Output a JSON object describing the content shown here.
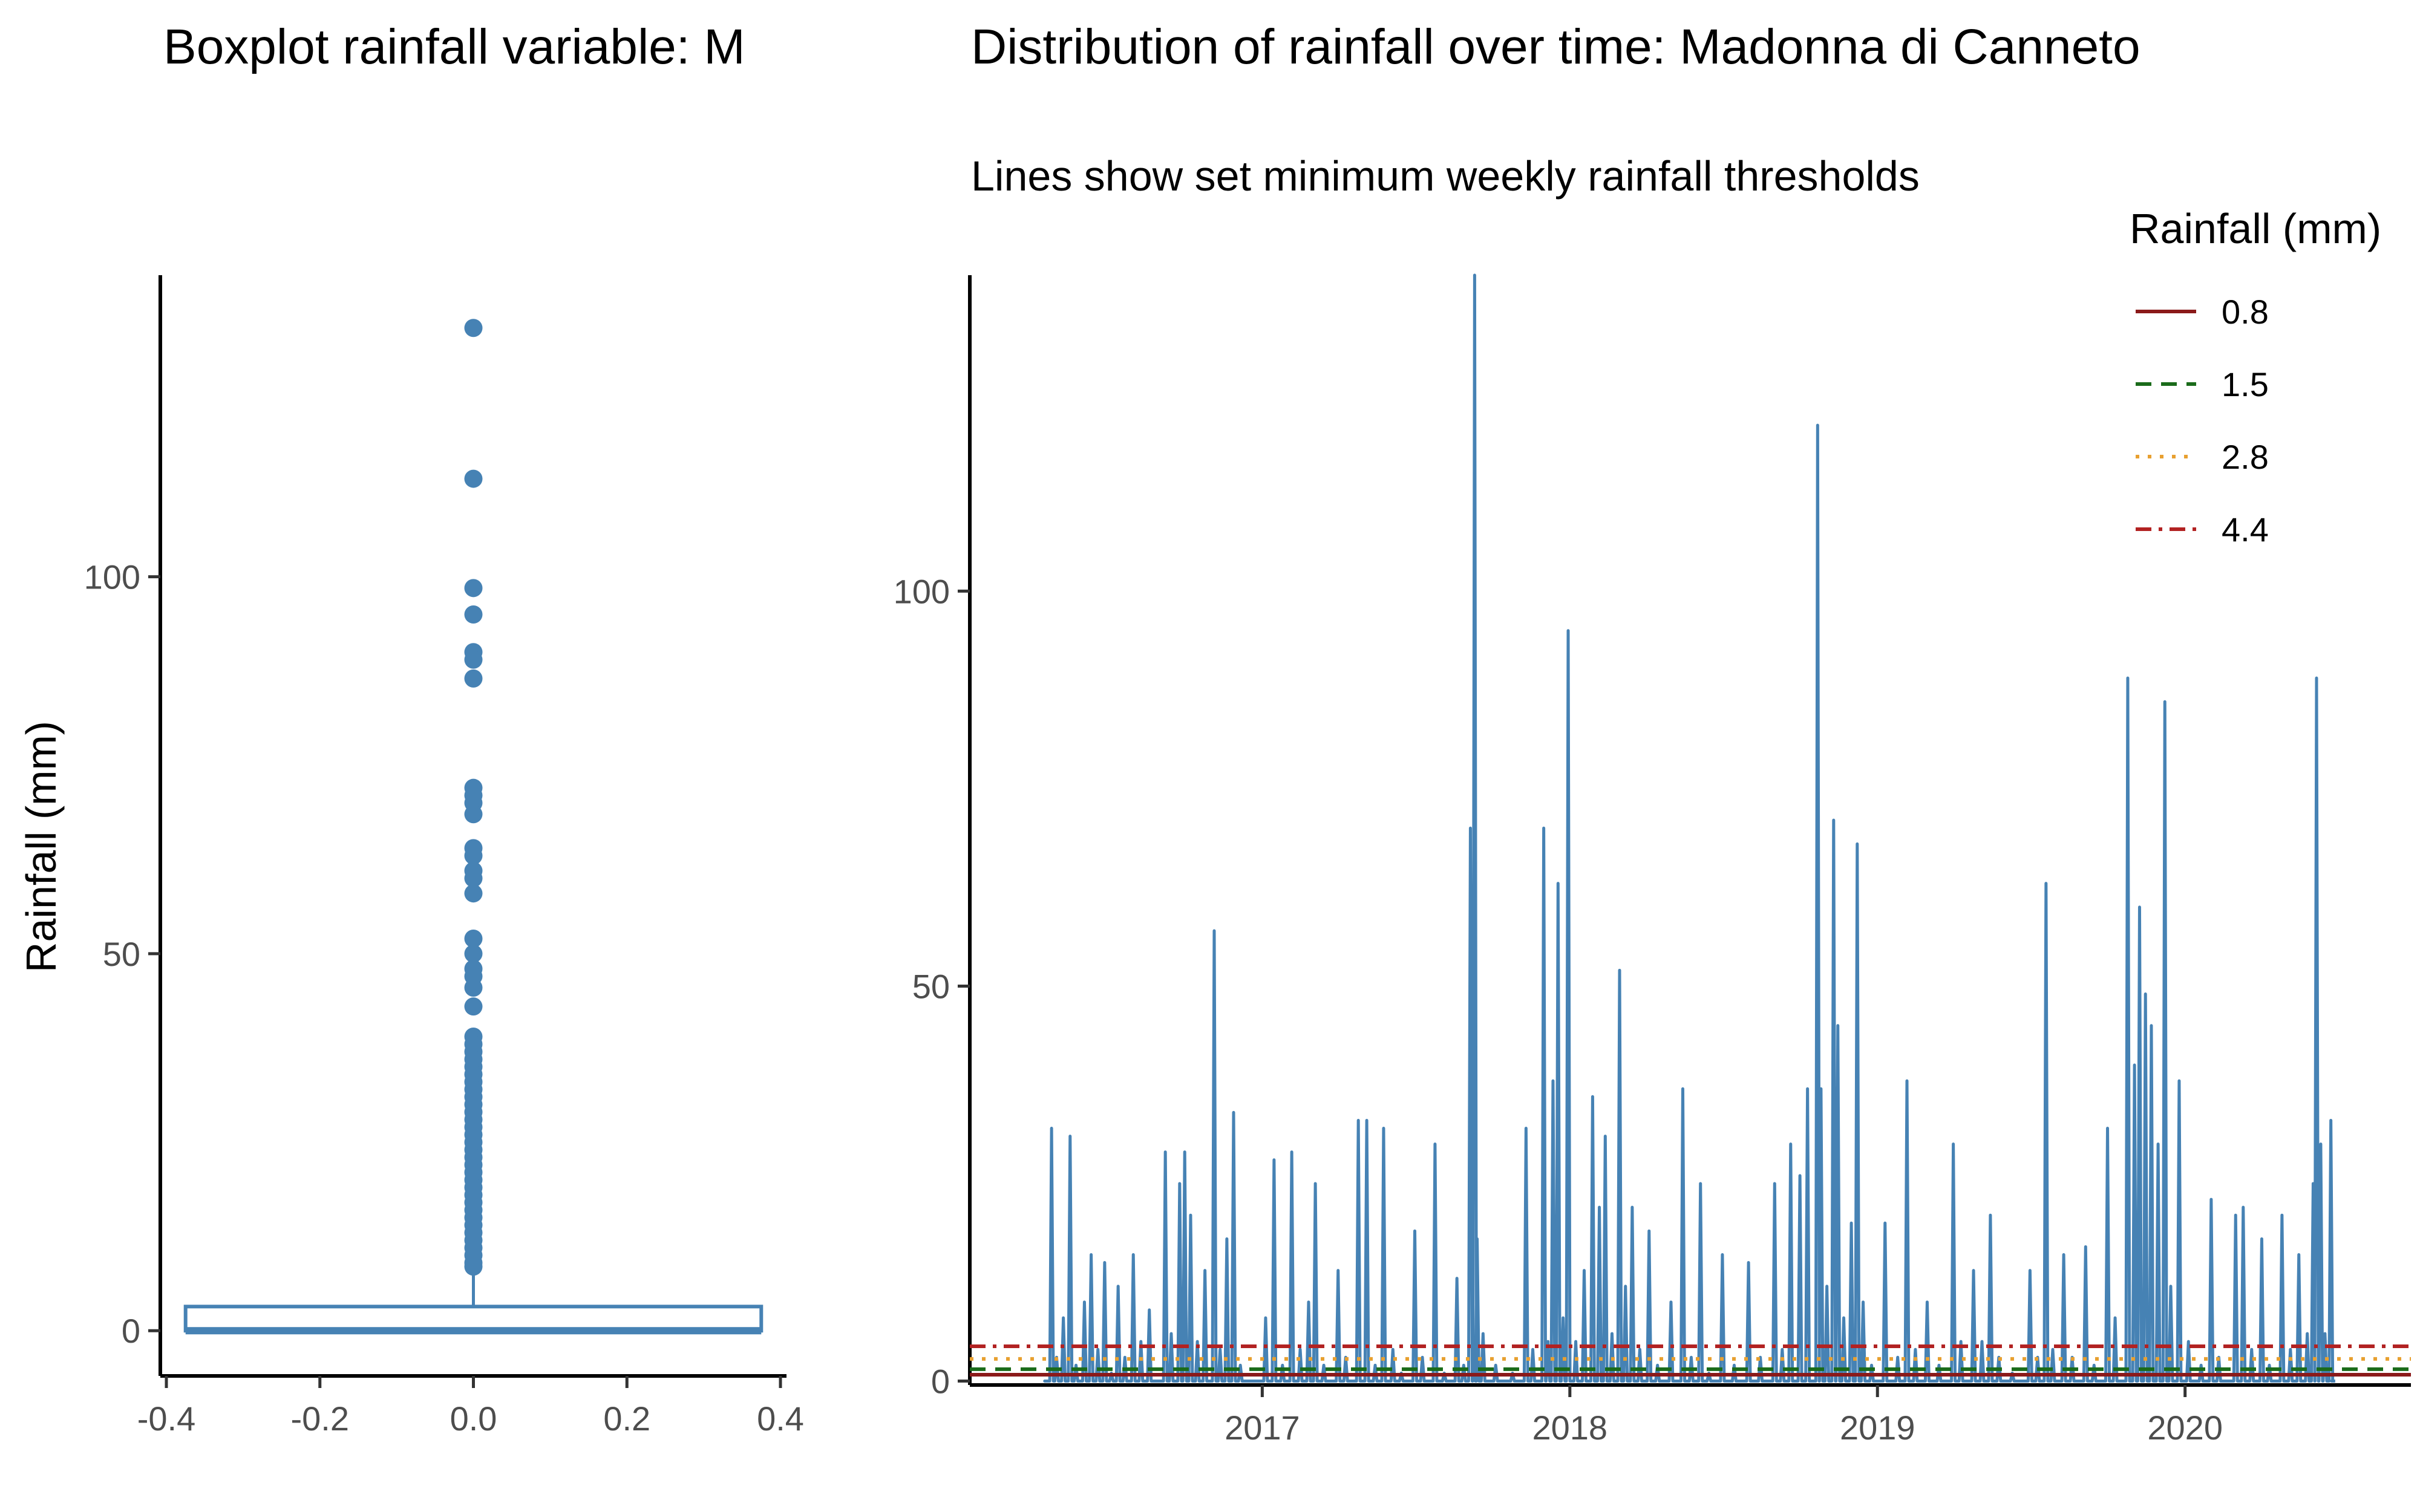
{
  "chart_data": [
    {
      "type": "boxplot",
      "title": "Boxplot rainfall variable: M",
      "ylabel": "Rainfall (mm)",
      "xlabel": "",
      "xlim": [
        -0.4,
        0.4
      ],
      "ylim": [
        -6,
        140
      ],
      "x_ticks": [
        "-0.4",
        "-0.2",
        "0.0",
        "0.2",
        "0.4"
      ],
      "y_ticks": [
        "0",
        "50",
        "100"
      ],
      "color": "#4682b4",
      "box": {
        "x": 0.0,
        "width": 0.75,
        "q1": 0,
        "median": 0,
        "q3": 3.2,
        "whisker_low": 0,
        "whisker_high": 8
      },
      "outliers": [
        133,
        113,
        98.5,
        95,
        90,
        89,
        86.5,
        72,
        71,
        70,
        68.5,
        64,
        63,
        61,
        60,
        58,
        52,
        50,
        48,
        47,
        45.5,
        43,
        39,
        38,
        37,
        36,
        35,
        34,
        33,
        32,
        31,
        30,
        29,
        28,
        27,
        26,
        25,
        24,
        23,
        22,
        21,
        20,
        19,
        18,
        17,
        16,
        15,
        14,
        13,
        12,
        11,
        10,
        9,
        8.5
      ]
    },
    {
      "type": "line",
      "title": "Distribution of rainfall over time: Madonna di Canneto",
      "subtitle": "Lines show set minimum weekly rainfall thresholds",
      "xlabel": "",
      "ylabel": "",
      "x_ticks": [
        "2017",
        "2018",
        "2019",
        "2020"
      ],
      "y_ticks": [
        "0",
        "50",
        "100"
      ],
      "xlim": [
        "2016-01-20",
        "2020-09-25"
      ],
      "ylim": [
        -0.5,
        140
      ],
      "line_color": "#4682b4",
      "series": [
        {
          "points": [
            [
              "2016-04-20",
              0
            ],
            [
              "2016-04-26",
              32
            ],
            [
              "2016-05-02",
              3
            ],
            [
              "2016-05-10",
              8
            ],
            [
              "2016-05-18",
              31
            ],
            [
              "2016-05-25",
              2
            ],
            [
              "2016-06-04",
              10
            ],
            [
              "2016-06-12",
              16
            ],
            [
              "2016-06-20",
              4
            ],
            [
              "2016-06-28",
              15
            ],
            [
              "2016-07-06",
              1
            ],
            [
              "2016-07-14",
              12
            ],
            [
              "2016-07-22",
              3
            ],
            [
              "2016-08-01",
              16
            ],
            [
              "2016-08-10",
              5
            ],
            [
              "2016-08-20",
              9
            ],
            [
              "2016-08-28",
              0
            ],
            [
              "2016-09-08",
              29
            ],
            [
              "2016-09-15",
              6
            ],
            [
              "2016-09-25",
              25
            ],
            [
              "2016-10-01",
              29
            ],
            [
              "2016-10-08",
              21
            ],
            [
              "2016-10-16",
              5
            ],
            [
              "2016-10-25",
              14
            ],
            [
              "2016-11-05",
              57
            ],
            [
              "2016-11-12",
              4
            ],
            [
              "2016-11-20",
              18
            ],
            [
              "2016-11-28",
              34
            ],
            [
              "2016-12-06",
              2
            ],
            [
              "2016-12-15",
              0
            ],
            [
              "2017-01-05",
              8
            ],
            [
              "2017-01-15",
              28
            ],
            [
              "2017-01-25",
              2
            ],
            [
              "2017-02-05",
              29
            ],
            [
              "2017-02-15",
              4
            ],
            [
              "2017-02-25",
              10
            ],
            [
              "2017-03-05",
              25
            ],
            [
              "2017-03-15",
              2
            ],
            [
              "2017-04-01",
              14
            ],
            [
              "2017-04-10",
              3
            ],
            [
              "2017-04-25",
              33
            ],
            [
              "2017-05-05",
              33
            ],
            [
              "2017-05-15",
              2
            ],
            [
              "2017-05-25",
              32
            ],
            [
              "2017-06-05",
              4
            ],
            [
              "2017-06-15",
              1
            ],
            [
              "2017-07-01",
              19
            ],
            [
              "2017-07-10",
              3
            ],
            [
              "2017-07-25",
              30
            ],
            [
              "2017-08-05",
              1
            ],
            [
              "2017-08-20",
              13
            ],
            [
              "2017-08-28",
              2
            ],
            [
              "2017-09-05",
              70
            ],
            [
              "2017-09-10",
              140
            ],
            [
              "2017-09-13",
              18
            ],
            [
              "2017-09-20",
              6
            ],
            [
              "2017-10-05",
              2
            ],
            [
              "2017-10-25",
              1
            ],
            [
              "2017-11-10",
              32
            ],
            [
              "2017-11-18",
              4
            ],
            [
              "2017-12-01",
              70
            ],
            [
              "2017-12-06",
              5
            ],
            [
              "2017-12-12",
              38
            ],
            [
              "2017-12-18",
              63
            ],
            [
              "2017-12-24",
              8
            ],
            [
              "2017-12-30",
              95
            ],
            [
              "2018-01-08",
              5
            ],
            [
              "2018-01-18",
              14
            ],
            [
              "2018-01-28",
              36
            ],
            [
              "2018-02-05",
              22
            ],
            [
              "2018-02-12",
              31
            ],
            [
              "2018-02-20",
              6
            ],
            [
              "2018-03-01",
              52
            ],
            [
              "2018-03-08",
              12
            ],
            [
              "2018-03-16",
              22
            ],
            [
              "2018-03-25",
              4
            ],
            [
              "2018-04-05",
              19
            ],
            [
              "2018-04-15",
              2
            ],
            [
              "2018-05-01",
              10
            ],
            [
              "2018-05-15",
              37
            ],
            [
              "2018-05-25",
              3
            ],
            [
              "2018-06-05",
              25
            ],
            [
              "2018-06-15",
              1
            ],
            [
              "2018-07-01",
              16
            ],
            [
              "2018-07-15",
              2
            ],
            [
              "2018-08-01",
              15
            ],
            [
              "2018-08-15",
              3
            ],
            [
              "2018-09-01",
              25
            ],
            [
              "2018-09-10",
              4
            ],
            [
              "2018-09-20",
              30
            ],
            [
              "2018-10-01",
              26
            ],
            [
              "2018-10-10",
              37
            ],
            [
              "2018-10-22",
              121
            ],
            [
              "2018-10-26",
              37
            ],
            [
              "2018-11-02",
              12
            ],
            [
              "2018-11-10",
              71
            ],
            [
              "2018-11-15",
              45
            ],
            [
              "2018-11-22",
              8
            ],
            [
              "2018-12-01",
              20
            ],
            [
              "2018-12-08",
              68
            ],
            [
              "2018-12-15",
              10
            ],
            [
              "2018-12-25",
              2
            ],
            [
              "2019-01-10",
              20
            ],
            [
              "2019-01-25",
              3
            ],
            [
              "2019-02-05",
              38
            ],
            [
              "2019-02-15",
              4
            ],
            [
              "2019-03-01",
              10
            ],
            [
              "2019-03-15",
              2
            ],
            [
              "2019-04-01",
              30
            ],
            [
              "2019-04-10",
              5
            ],
            [
              "2019-04-25",
              14
            ],
            [
              "2019-05-05",
              5
            ],
            [
              "2019-05-15",
              21
            ],
            [
              "2019-05-25",
              3
            ],
            [
              "2019-06-10",
              1
            ],
            [
              "2019-07-01",
              14
            ],
            [
              "2019-07-10",
              3
            ],
            [
              "2019-07-20",
              63
            ],
            [
              "2019-07-28",
              4
            ],
            [
              "2019-08-10",
              16
            ],
            [
              "2019-08-20",
              3
            ],
            [
              "2019-09-05",
              17
            ],
            [
              "2019-09-15",
              2
            ],
            [
              "2019-10-01",
              32
            ],
            [
              "2019-10-10",
              8
            ],
            [
              "2019-10-25",
              89
            ],
            [
              "2019-11-02",
              40
            ],
            [
              "2019-11-08",
              60
            ],
            [
              "2019-11-15",
              49
            ],
            [
              "2019-11-22",
              45
            ],
            [
              "2019-11-30",
              30
            ],
            [
              "2019-12-08",
              86
            ],
            [
              "2019-12-15",
              12
            ],
            [
              "2019-12-25",
              38
            ],
            [
              "2020-01-05",
              5
            ],
            [
              "2020-01-20",
              2
            ],
            [
              "2020-02-01",
              23
            ],
            [
              "2020-02-10",
              3
            ],
            [
              "2020-03-01",
              21
            ],
            [
              "2020-03-10",
              22
            ],
            [
              "2020-03-20",
              4
            ],
            [
              "2020-04-01",
              18
            ],
            [
              "2020-04-10",
              2
            ],
            [
              "2020-04-25",
              21
            ],
            [
              "2020-05-05",
              4
            ],
            [
              "2020-05-15",
              16
            ],
            [
              "2020-05-25",
              6
            ],
            [
              "2020-06-01",
              25
            ],
            [
              "2020-06-05",
              89
            ],
            [
              "2020-06-10",
              30
            ],
            [
              "2020-06-15",
              6
            ],
            [
              "2020-06-22",
              33
            ],
            [
              "2020-06-25",
              0
            ]
          ]
        }
      ],
      "thresholds": [
        {
          "value": 0.8,
          "label": "0.8",
          "color": "#8b1a1a",
          "dash": "solid"
        },
        {
          "value": 1.5,
          "label": "1.5",
          "color": "#1a6b1a",
          "dash": "dashed"
        },
        {
          "value": 2.8,
          "label": "2.8",
          "color": "#e8a030",
          "dash": "dotted"
        },
        {
          "value": 4.4,
          "label": "4.4",
          "color": "#b22222",
          "dash": "dotdash"
        }
      ],
      "legend": {
        "title": "Rainfall (mm)",
        "position": "top-right"
      }
    }
  ]
}
